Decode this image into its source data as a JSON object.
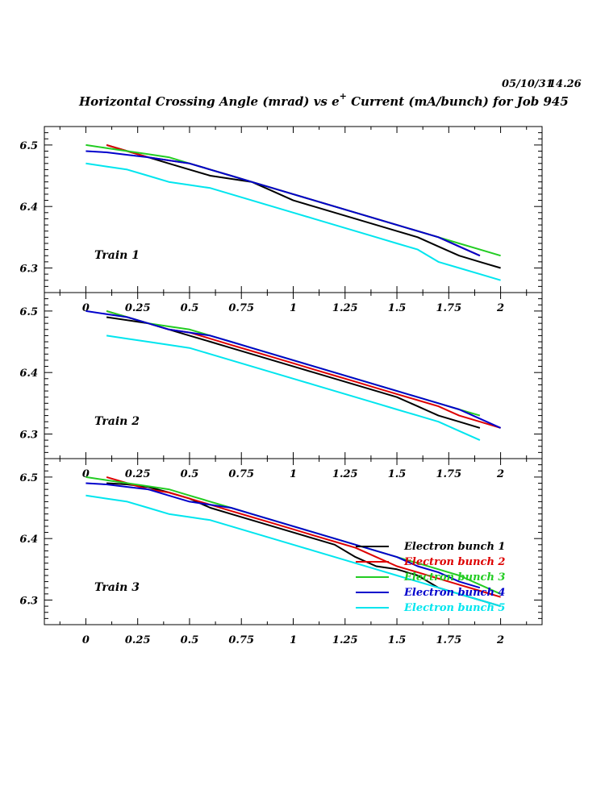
{
  "header": {
    "date": "05/10/31",
    "time": "14.26",
    "title_main": "Horizontal Crossing Angle (mrad) vs e",
    "title_sup": "+",
    "title_rest": " Current (mA/bunch) for Job 945"
  },
  "chart_data": {
    "type": "line",
    "xlim": [
      -0.2,
      2.2
    ],
    "ylim": [
      6.26,
      6.53
    ],
    "x_ticks": [
      "0",
      "0.25",
      "0.5",
      "0.75",
      "1",
      "1.25",
      "1.5",
      "1.75",
      "2"
    ],
    "y_ticks": [
      "6.3",
      "6.4",
      "6.5"
    ],
    "colors": {
      "Electron bunch 1": "#000000",
      "Electron bunch 2": "#dd0000",
      "Electron bunch 3": "#22cc22",
      "Electron bunch 4": "#0000cc",
      "Electron bunch 5": "#00e5ee"
    },
    "legend": {
      "placement": "inside-bottom-right of Train 3",
      "entries": [
        "Electron bunch 1",
        "Electron bunch 2",
        "Electron bunch 3",
        "Electron bunch 4",
        "Electron bunch 5"
      ]
    },
    "panels": [
      {
        "label": "Train 1",
        "series": [
          {
            "name": "Electron bunch 1",
            "x": [
              0.1,
              0.2,
              0.3,
              0.4,
              0.5,
              0.6,
              0.7,
              0.8,
              0.9,
              1.0,
              1.1,
              1.2,
              1.3,
              1.4,
              1.5,
              1.6,
              1.7,
              1.8,
              1.9,
              2.0
            ],
            "y": [
              6.5,
              6.49,
              6.48,
              6.47,
              6.46,
              6.45,
              6.445,
              6.44,
              6.425,
              6.41,
              6.4,
              6.39,
              6.38,
              6.37,
              6.36,
              6.35,
              6.335,
              6.32,
              6.31,
              6.3
            ]
          },
          {
            "name": "Electron bunch 2",
            "x": [
              0.1,
              0.2,
              0.3,
              0.4,
              0.5,
              0.6,
              0.7,
              0.8,
              0.9,
              1.0,
              1.1,
              1.2,
              1.3,
              1.4,
              1.5,
              1.6,
              1.7,
              1.8,
              1.9
            ],
            "y": [
              6.5,
              6.49,
              6.48,
              6.475,
              6.47,
              6.46,
              6.45,
              6.44,
              6.43,
              6.42,
              6.41,
              6.4,
              6.39,
              6.38,
              6.37,
              6.36,
              6.35,
              6.335,
              6.32
            ]
          },
          {
            "name": "Electron bunch 3",
            "x": [
              0.0,
              0.1,
              0.2,
              0.3,
              0.4,
              0.5,
              0.6,
              0.7,
              0.8,
              0.9,
              1.0,
              1.1,
              1.2,
              1.3,
              1.4,
              1.5,
              1.6,
              1.7,
              1.8,
              1.9,
              2.0
            ],
            "y": [
              6.5,
              6.495,
              6.49,
              6.485,
              6.48,
              6.47,
              6.46,
              6.45,
              6.44,
              6.43,
              6.42,
              6.41,
              6.4,
              6.39,
              6.38,
              6.37,
              6.36,
              6.35,
              6.34,
              6.33,
              6.32
            ]
          },
          {
            "name": "Electron bunch 4",
            "x": [
              0.0,
              0.1,
              0.2,
              0.3,
              0.4,
              0.5,
              0.6,
              0.7,
              0.8,
              0.9,
              1.0,
              1.1,
              1.2,
              1.3,
              1.4,
              1.5,
              1.6,
              1.7,
              1.8,
              1.9
            ],
            "y": [
              6.49,
              6.488,
              6.484,
              6.48,
              6.475,
              6.47,
              6.46,
              6.45,
              6.44,
              6.43,
              6.42,
              6.41,
              6.4,
              6.39,
              6.38,
              6.37,
              6.36,
              6.35,
              6.335,
              6.32
            ]
          },
          {
            "name": "Electron bunch 5",
            "x": [
              0.0,
              0.1,
              0.2,
              0.3,
              0.4,
              0.5,
              0.6,
              0.7,
              0.8,
              0.9,
              1.0,
              1.1,
              1.2,
              1.3,
              1.4,
              1.5,
              1.6,
              1.7,
              1.8,
              1.9,
              2.0
            ],
            "y": [
              6.47,
              6.465,
              6.46,
              6.45,
              6.44,
              6.435,
              6.43,
              6.42,
              6.41,
              6.4,
              6.39,
              6.38,
              6.37,
              6.36,
              6.35,
              6.34,
              6.33,
              6.31,
              6.3,
              6.29,
              6.28
            ]
          }
        ]
      },
      {
        "label": "Train 2",
        "series": [
          {
            "name": "Electron bunch 1",
            "x": [
              0.1,
              0.2,
              0.3,
              0.4,
              0.5,
              0.6,
              0.7,
              0.8,
              0.9,
              1.0,
              1.1,
              1.2,
              1.3,
              1.4,
              1.5,
              1.6,
              1.7,
              1.8,
              1.9
            ],
            "y": [
              6.49,
              6.485,
              6.48,
              6.47,
              6.46,
              6.45,
              6.44,
              6.43,
              6.42,
              6.41,
              6.4,
              6.39,
              6.38,
              6.37,
              6.36,
              6.345,
              6.33,
              6.32,
              6.31
            ]
          },
          {
            "name": "Electron bunch 2",
            "x": [
              0.1,
              0.2,
              0.3,
              0.4,
              0.5,
              0.6,
              0.7,
              0.8,
              0.9,
              1.0,
              1.1,
              1.2,
              1.3,
              1.4,
              1.5,
              1.6,
              1.7,
              1.8,
              1.9,
              2.0
            ],
            "y": [
              6.5,
              6.49,
              6.48,
              6.47,
              6.465,
              6.455,
              6.445,
              6.435,
              6.425,
              6.415,
              6.405,
              6.395,
              6.385,
              6.375,
              6.365,
              6.355,
              6.345,
              6.33,
              6.32,
              6.31
            ]
          },
          {
            "name": "Electron bunch 3",
            "x": [
              0.1,
              0.2,
              0.3,
              0.4,
              0.5,
              0.6,
              0.7,
              0.8,
              0.9,
              1.0,
              1.1,
              1.2,
              1.3,
              1.4,
              1.5,
              1.6,
              1.7,
              1.8,
              1.9
            ],
            "y": [
              6.5,
              6.49,
              6.48,
              6.475,
              6.47,
              6.46,
              6.45,
              6.44,
              6.43,
              6.42,
              6.41,
              6.4,
              6.39,
              6.38,
              6.37,
              6.36,
              6.35,
              6.34,
              6.33
            ]
          },
          {
            "name": "Electron bunch 4",
            "x": [
              0.0,
              0.1,
              0.2,
              0.3,
              0.4,
              0.5,
              0.6,
              0.7,
              0.8,
              0.9,
              1.0,
              1.1,
              1.2,
              1.3,
              1.4,
              1.5,
              1.6,
              1.7,
              1.8,
              1.9,
              2.0
            ],
            "y": [
              6.5,
              6.495,
              6.49,
              6.48,
              6.47,
              6.465,
              6.46,
              6.45,
              6.44,
              6.43,
              6.42,
              6.41,
              6.4,
              6.39,
              6.38,
              6.37,
              6.36,
              6.35,
              6.34,
              6.325,
              6.31
            ]
          },
          {
            "name": "Electron bunch 5",
            "x": [
              0.1,
              0.2,
              0.3,
              0.4,
              0.5,
              0.6,
              0.7,
              0.8,
              0.9,
              1.0,
              1.1,
              1.2,
              1.3,
              1.4,
              1.5,
              1.6,
              1.7,
              1.8,
              1.9
            ],
            "y": [
              6.46,
              6.455,
              6.45,
              6.445,
              6.44,
              6.43,
              6.42,
              6.41,
              6.4,
              6.39,
              6.38,
              6.37,
              6.36,
              6.35,
              6.34,
              6.33,
              6.32,
              6.305,
              6.29
            ]
          }
        ]
      },
      {
        "label": "Train 3",
        "series": [
          {
            "name": "Electron bunch 1",
            "x": [
              0.1,
              0.2,
              0.3,
              0.4,
              0.5,
              0.6,
              0.7,
              0.8,
              0.9,
              1.0,
              1.1,
              1.2,
              1.3,
              1.4,
              1.5,
              1.6,
              1.7,
              1.8,
              1.9,
              2.0
            ],
            "y": [
              6.49,
              6.488,
              6.484,
              6.475,
              6.465,
              6.45,
              6.44,
              6.43,
              6.42,
              6.41,
              6.4,
              6.39,
              6.37,
              6.355,
              6.35,
              6.34,
              6.32,
              6.31,
              6.3,
              6.29
            ]
          },
          {
            "name": "Electron bunch 2",
            "x": [
              0.1,
              0.2,
              0.3,
              0.4,
              0.5,
              0.6,
              0.7,
              0.8,
              0.9,
              1.0,
              1.1,
              1.2,
              1.3,
              1.4,
              1.5,
              1.6,
              1.7,
              1.8,
              1.9,
              2.0
            ],
            "y": [
              6.5,
              6.49,
              6.48,
              6.475,
              6.465,
              6.455,
              6.445,
              6.435,
              6.425,
              6.415,
              6.405,
              6.395,
              6.385,
              6.37,
              6.355,
              6.345,
              6.335,
              6.325,
              6.315,
              6.305
            ]
          },
          {
            "name": "Electron bunch 3",
            "x": [
              0.0,
              0.1,
              0.2,
              0.3,
              0.4,
              0.5,
              0.6,
              0.7,
              0.8,
              0.9,
              1.0,
              1.1,
              1.2,
              1.3,
              1.4,
              1.5,
              1.6,
              1.7,
              1.8,
              1.9,
              2.0
            ],
            "y": [
              6.5,
              6.495,
              6.49,
              6.485,
              6.48,
              6.47,
              6.46,
              6.45,
              6.44,
              6.43,
              6.42,
              6.41,
              6.4,
              6.39,
              6.38,
              6.37,
              6.36,
              6.35,
              6.34,
              6.325,
              6.31
            ]
          },
          {
            "name": "Electron bunch 4",
            "x": [
              0.0,
              0.1,
              0.2,
              0.3,
              0.4,
              0.5,
              0.6,
              0.7,
              0.8,
              0.9,
              1.0,
              1.1,
              1.2,
              1.3,
              1.4,
              1.5,
              1.6,
              1.7,
              1.8,
              1.9
            ],
            "y": [
              6.49,
              6.488,
              6.484,
              6.48,
              6.47,
              6.46,
              6.455,
              6.45,
              6.44,
              6.43,
              6.42,
              6.41,
              6.4,
              6.39,
              6.38,
              6.37,
              6.355,
              6.345,
              6.33,
              6.32
            ]
          },
          {
            "name": "Electron bunch 5",
            "x": [
              0.0,
              0.1,
              0.2,
              0.3,
              0.4,
              0.5,
              0.6,
              0.7,
              0.8,
              0.9,
              1.0,
              1.1,
              1.2,
              1.3,
              1.4,
              1.5,
              1.6,
              1.7,
              1.8,
              1.9,
              2.0
            ],
            "y": [
              6.47,
              6.465,
              6.46,
              6.45,
              6.44,
              6.435,
              6.43,
              6.42,
              6.41,
              6.4,
              6.39,
              6.38,
              6.37,
              6.36,
              6.35,
              6.34,
              6.33,
              6.32,
              6.31,
              6.3,
              6.29
            ]
          }
        ]
      }
    ]
  }
}
